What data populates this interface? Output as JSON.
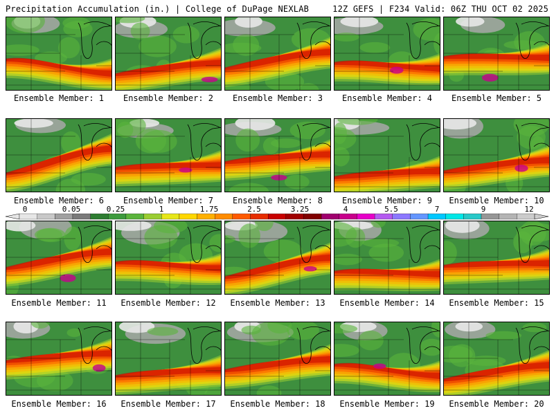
{
  "header": {
    "left": "Precipitation Accumulation (in.) | College of DuPage NEXLAB",
    "right": "12Z GEFS | F234 Valid: 06Z THU OCT 02 2025"
  },
  "panels": [
    {
      "caption": "Ensemble Member: 1"
    },
    {
      "caption": "Ensemble Member: 2"
    },
    {
      "caption": "Ensemble Member: 3"
    },
    {
      "caption": "Ensemble Member: 4"
    },
    {
      "caption": "Ensemble Member: 5"
    },
    {
      "caption": "Ensemble Member: 6"
    },
    {
      "caption": "Ensemble Member: 7"
    },
    {
      "caption": "Ensemble Member: 8"
    },
    {
      "caption": "Ensemble Member: 9"
    },
    {
      "caption": "Ensemble Member: 10"
    },
    {
      "caption": "Ensemble Member: 11"
    },
    {
      "caption": "Ensemble Member: 12"
    },
    {
      "caption": "Ensemble Member: 13"
    },
    {
      "caption": "Ensemble Member: 14"
    },
    {
      "caption": "Ensemble Member: 15"
    },
    {
      "caption": "Ensemble Member: 16"
    },
    {
      "caption": "Ensemble Member: 17"
    },
    {
      "caption": "Ensemble Member: 18"
    },
    {
      "caption": "Ensemble Member: 19"
    },
    {
      "caption": "Ensemble Member: 20"
    }
  ],
  "colorbar": {
    "labels": [
      "0",
      "0.05",
      "0.25",
      "1",
      "1.75",
      "2.5",
      "3.25",
      "4",
      "5.5",
      "7",
      "9",
      "12"
    ],
    "colors": [
      "#e6e6e6",
      "#c8c8c8",
      "#a0a0a0",
      "#7a7a7a",
      "#2e7d32",
      "#3d9a3d",
      "#5ab43c",
      "#9acd32",
      "#e6e619",
      "#ffd700",
      "#ffb000",
      "#ff8c00",
      "#ff5a00",
      "#e62d00",
      "#c80000",
      "#a00000",
      "#800000",
      "#a0006e",
      "#c8008c",
      "#e600c8",
      "#b45af0",
      "#8c78ff",
      "#6496ff",
      "#00c8ff",
      "#00e6e6",
      "#28c8c8",
      "#969696",
      "#b4b4b4",
      "#cccccc"
    ]
  }
}
